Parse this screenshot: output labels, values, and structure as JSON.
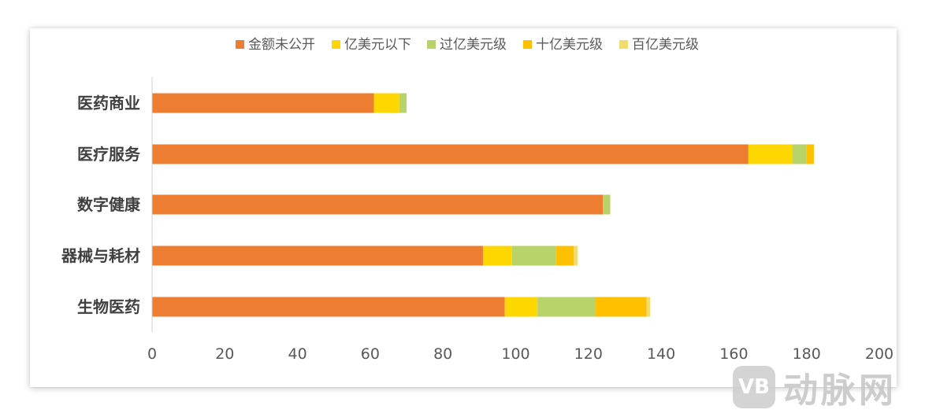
{
  "chart_data": {
    "type": "bar",
    "orientation": "horizontal",
    "stacked": true,
    "categories": [
      "医药商业",
      "医疗服务",
      "数字健康",
      "器械与耗材",
      "生物医药"
    ],
    "series": [
      {
        "name": "金额未公开",
        "color": "#ED7D31",
        "values": [
          61,
          164,
          124,
          91,
          97
        ]
      },
      {
        "name": "亿美元以下",
        "color": "#FFD700",
        "values": [
          7,
          12,
          0,
          8,
          9
        ]
      },
      {
        "name": "过亿美元级",
        "color": "#B8D36A",
        "values": [
          2,
          4,
          2,
          12,
          16
        ]
      },
      {
        "name": "十亿美元级",
        "color": "#FFC000",
        "values": [
          0,
          2,
          0,
          5,
          14
        ]
      },
      {
        "name": "百亿美元级",
        "color": "#F1DC6E",
        "values": [
          0,
          0,
          0,
          1,
          1
        ]
      }
    ],
    "xlim": [
      0,
      200
    ],
    "xticks": [
      0,
      20,
      40,
      60,
      80,
      100,
      120,
      140,
      160,
      180,
      200
    ],
    "legend_position": "top",
    "grid": false
  },
  "watermark": {
    "logo_text": "VB",
    "text": "动脉网"
  }
}
